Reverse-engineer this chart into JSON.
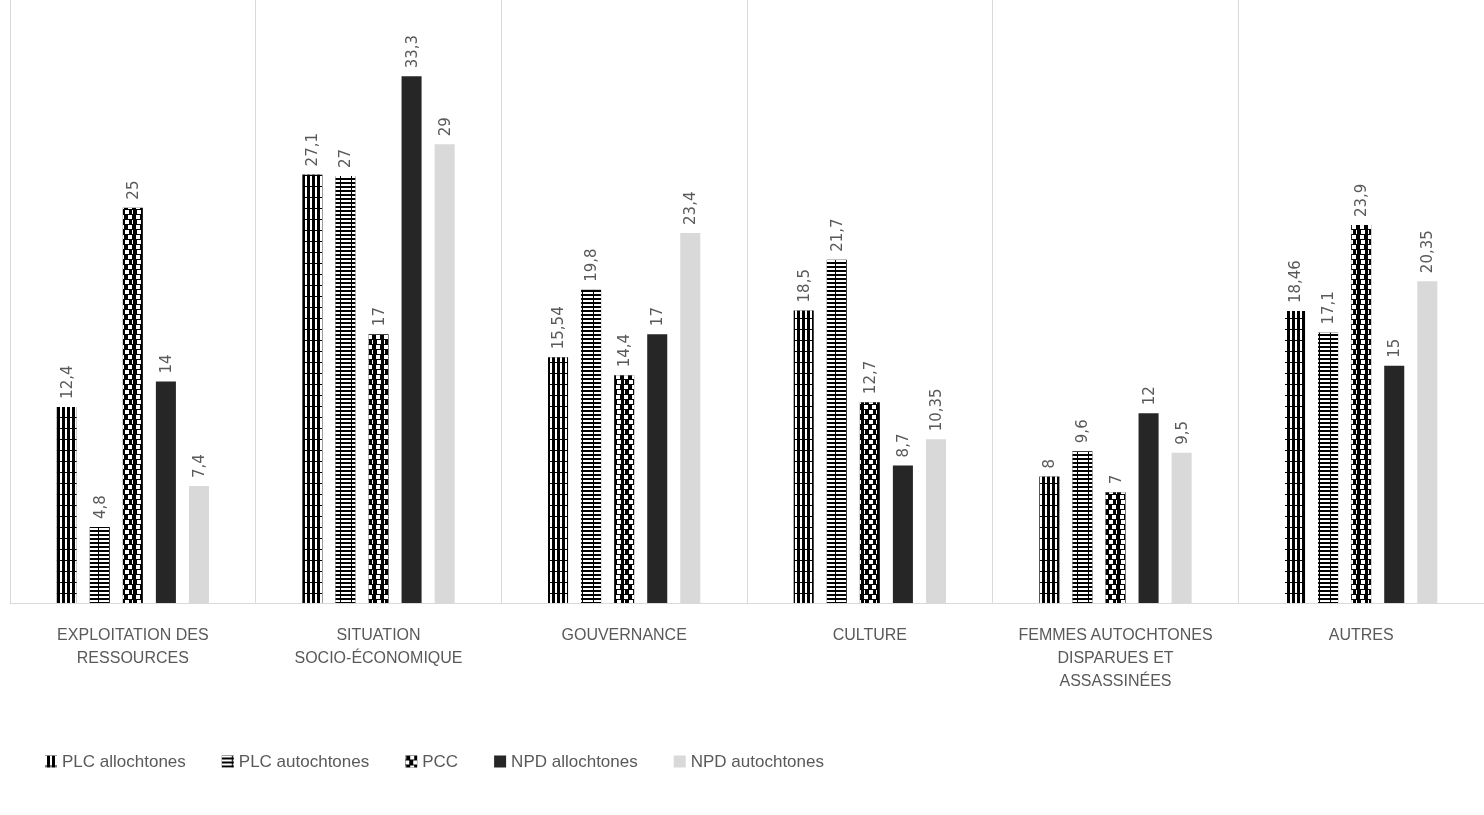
{
  "chart_data": {
    "type": "bar",
    "categories": [
      "EXPLOITATION DES RESSOURCES",
      "SITUATION SOCIO-ÉCONOMIQUE",
      "GOUVERNANCE",
      "CULTURE",
      "FEMMES AUTOCHTONES DISPARUES ET ASSASSINÉES",
      "AUTRES"
    ],
    "series": [
      {
        "name": "PLC allochtones",
        "color": "#000000",
        "values": [
          12.4,
          27.1,
          15.54,
          18.5,
          8,
          18.46
        ],
        "value_labels": [
          "12,4",
          "27,1",
          "15,54",
          "18,5",
          "8",
          "18,46"
        ]
      },
      {
        "name": "PLC autochtones",
        "color": "#000000",
        "values": [
          4.8,
          27,
          19.8,
          21.7,
          9.6,
          17.1
        ],
        "value_labels": [
          "4,8",
          "27",
          "19,8",
          "21,7",
          "9,6",
          "17,1"
        ]
      },
      {
        "name": "PCC",
        "color": "#000000",
        "values": [
          25,
          17,
          14.4,
          12.7,
          7,
          23.9
        ],
        "value_labels": [
          "25",
          "17",
          "14,4",
          "12,7",
          "7",
          "23,9"
        ]
      },
      {
        "name": "NPD allochtones",
        "color": "#262626",
        "values": [
          14,
          33.3,
          17,
          8.7,
          12,
          15
        ],
        "value_labels": [
          "14",
          "33,3",
          "17",
          "8,7",
          "12",
          "15"
        ]
      },
      {
        "name": "NPD autochtones",
        "color": "#d9d9d9",
        "values": [
          7.4,
          29,
          23.4,
          10.35,
          9.5,
          20.35
        ],
        "value_labels": [
          "7,4",
          "29",
          "23,4",
          "10,35",
          "9,5",
          "20,35"
        ]
      }
    ],
    "grid": "x",
    "legend": "bottom left"
  }
}
